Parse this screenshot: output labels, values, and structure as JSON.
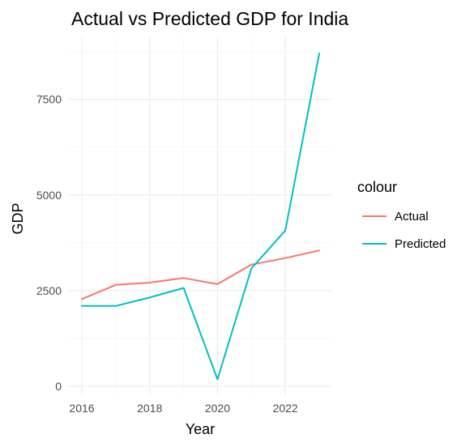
{
  "chart_data": {
    "type": "line",
    "title": "Actual vs Predicted GDP for India",
    "xlabel": "Year",
    "ylabel": "GDP",
    "x": [
      2016,
      2017,
      2018,
      2019,
      2020,
      2021,
      2022,
      2023
    ],
    "xlim": [
      2016,
      2023
    ],
    "ylim": [
      0,
      8700
    ],
    "x_ticks": [
      "2016",
      "2018",
      "2020",
      "2022"
    ],
    "y_ticks": [
      "0",
      "2500",
      "5000",
      "7500"
    ],
    "grid": true,
    "legend_title": "colour",
    "legend_position": "right",
    "series": [
      {
        "name": "Actual",
        "color": "#F8766D",
        "values": [
          2280,
          2650,
          2710,
          2830,
          2670,
          3180,
          3350,
          3550
        ]
      },
      {
        "name": "Predicted",
        "color": "#00BFC4",
        "values": [
          2100,
          2100,
          2320,
          2570,
          180,
          3080,
          4070,
          8700
        ]
      }
    ]
  }
}
